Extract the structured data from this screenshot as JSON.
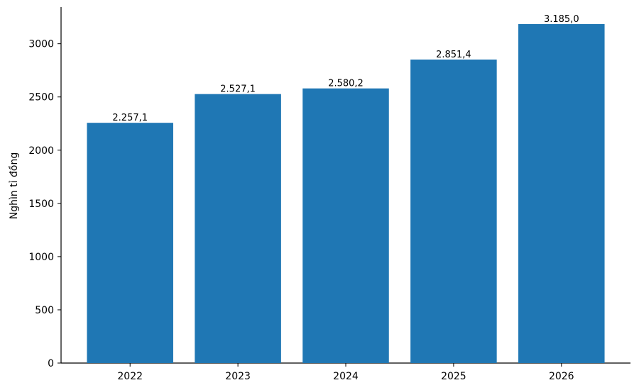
{
  "chart_data": {
    "type": "bar",
    "y_label": "Nghìn tỉ đồng",
    "categories": [
      "2022",
      "2023",
      "2024",
      "2025",
      "2026"
    ],
    "values": [
      2257.1,
      2527.1,
      2580.2,
      2851.4,
      3185.0
    ],
    "value_labels": [
      "2.257,1",
      "2.527,1",
      "2.580,2",
      "2.851,4",
      "3.185,0"
    ],
    "color": "#1f77b4",
    "ylim": [
      0,
      3344.25
    ],
    "yticks": [
      0,
      500,
      1000,
      1500,
      2000,
      2500,
      3000
    ],
    "grid": false
  }
}
